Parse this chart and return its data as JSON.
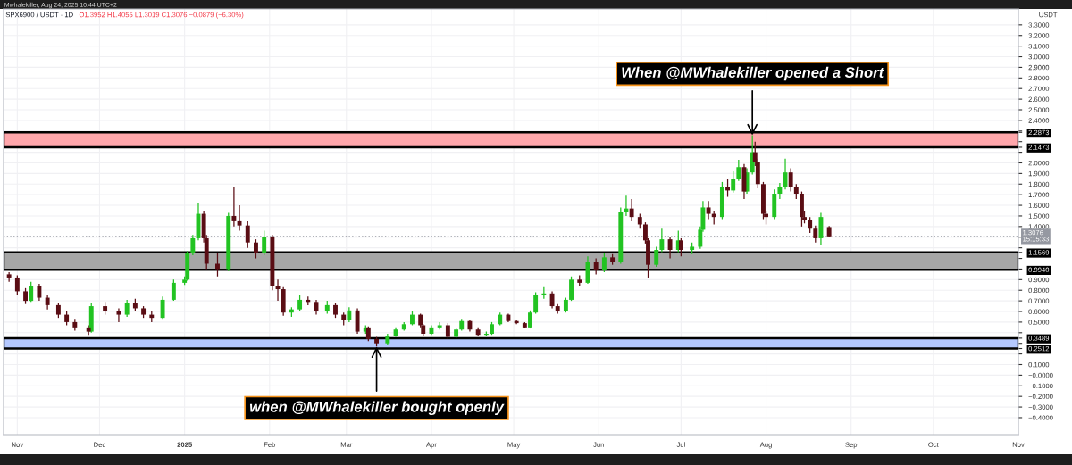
{
  "chart_data": {
    "type": "candlestick",
    "title": "SPX6900 / USDT · 1D",
    "subtitle": "O1.3952 H1.4055 L1.3019 C1.3076 −0.0879 (−6.30%)",
    "ylabel": "USDT",
    "annotations": [
      "Mwhalekiller, Aug 24, 2025 10:44 UTC+2",
      {
        "text": "When @MWhalekiller opened a Short",
        "x": "2025-07-27",
        "y": 2.26
      },
      {
        "text": "when @MWhalekiller bought openly",
        "x": "2025-03-12",
        "y": 0.27
      }
    ],
    "series": [
      {
        "color": "#22c322",
        "x": [
          "2024-11-06",
          "2024-11-28",
          "2024-12-11",
          "2024-12-24",
          "2024-12-28",
          "2025-01-01",
          "2025-01-02",
          "2025-01-04",
          "2025-01-06",
          "2025-01-17",
          "2025-01-30",
          "2025-02-09",
          "2025-02-12",
          "2025-02-22",
          "2025-03-02",
          "2025-03-08",
          "2025-03-16",
          "2025-03-19",
          "2025-03-22",
          "2025-03-25",
          "2025-04-01",
          "2025-04-04",
          "2025-04-10",
          "2025-04-12",
          "2025-04-21",
          "2025-04-23",
          "2025-04-26",
          "2025-05-07",
          "2025-05-09",
          "2025-05-12",
          "2025-05-20",
          "2025-05-22",
          "2025-05-28",
          "2025-06-03",
          "2025-06-09",
          "2025-06-11",
          "2025-06-22",
          "2025-06-24",
          "2025-06-30",
          "2025-07-05",
          "2025-07-08",
          "2025-07-09",
          "2025-07-16",
          "2025-07-20",
          "2025-07-22",
          "2025-07-25",
          "2025-07-27",
          "2025-08-04",
          "2025-08-06",
          "2025-08-08",
          "2025-08-21"
        ],
        "ohlc": [
          [
            0.7,
            0.88,
            0.69,
            0.84
          ],
          [
            0.41,
            0.68,
            0.4,
            0.65
          ],
          [
            0.57,
            0.71,
            0.55,
            0.68
          ],
          [
            0.54,
            0.74,
            0.53,
            0.71
          ],
          [
            0.71,
            0.9,
            0.7,
            0.87
          ],
          [
            0.87,
            0.93,
            0.85,
            0.9
          ],
          [
            0.9,
            1.17,
            0.89,
            1.15
          ],
          [
            1.15,
            1.32,
            1.13,
            1.29
          ],
          [
            1.29,
            1.62,
            1.27,
            1.52
          ],
          [
            1.0,
            1.53,
            0.98,
            1.5
          ],
          [
            1.15,
            1.36,
            1.13,
            1.3
          ],
          [
            0.59,
            0.64,
            0.55,
            0.62
          ],
          [
            0.62,
            0.76,
            0.6,
            0.71
          ],
          [
            0.6,
            0.7,
            0.58,
            0.66
          ],
          [
            0.52,
            0.64,
            0.5,
            0.61
          ],
          [
            0.41,
            0.47,
            0.39,
            0.45
          ],
          [
            0.3,
            0.39,
            0.29,
            0.37
          ],
          [
            0.37,
            0.45,
            0.36,
            0.43
          ],
          [
            0.43,
            0.5,
            0.42,
            0.48
          ],
          [
            0.48,
            0.6,
            0.47,
            0.57
          ],
          [
            0.39,
            0.47,
            0.38,
            0.45
          ],
          [
            0.45,
            0.5,
            0.43,
            0.47
          ],
          [
            0.36,
            0.45,
            0.35,
            0.43
          ],
          [
            0.43,
            0.53,
            0.42,
            0.51
          ],
          [
            0.38,
            0.41,
            0.37,
            0.39
          ],
          [
            0.39,
            0.5,
            0.38,
            0.48
          ],
          [
            0.48,
            0.59,
            0.47,
            0.57
          ],
          [
            0.45,
            0.61,
            0.44,
            0.59
          ],
          [
            0.59,
            0.78,
            0.58,
            0.76
          ],
          [
            0.76,
            0.83,
            0.72,
            0.77
          ],
          [
            0.6,
            0.73,
            0.59,
            0.71
          ],
          [
            0.71,
            0.93,
            0.7,
            0.9
          ],
          [
            0.87,
            1.12,
            0.86,
            1.07
          ],
          [
            0.99,
            1.15,
            0.97,
            1.11
          ],
          [
            1.07,
            1.58,
            1.05,
            1.54
          ],
          [
            1.54,
            1.69,
            1.5,
            1.57
          ],
          [
            1.04,
            1.21,
            1.02,
            1.18
          ],
          [
            1.18,
            1.38,
            1.16,
            1.28
          ],
          [
            1.18,
            1.36,
            1.16,
            1.27
          ],
          [
            1.18,
            1.25,
            1.14,
            1.21
          ],
          [
            1.21,
            1.4,
            1.19,
            1.37
          ],
          [
            1.37,
            1.64,
            1.35,
            1.58
          ],
          [
            1.49,
            1.82,
            1.47,
            1.77
          ],
          [
            1.74,
            1.92,
            1.72,
            1.85
          ],
          [
            1.85,
            2.03,
            1.83,
            1.96
          ],
          [
            1.73,
            1.95,
            1.71,
            1.91
          ],
          [
            1.91,
            2.26,
            1.89,
            2.1
          ],
          [
            1.49,
            1.75,
            1.47,
            1.71
          ],
          [
            1.71,
            1.81,
            1.66,
            1.77
          ],
          [
            1.77,
            2.04,
            1.75,
            1.91
          ],
          [
            1.29,
            1.53,
            1.23,
            1.49
          ]
        ]
      },
      {
        "color": "#5a0d14",
        "x": [
          "2024-10-29",
          "2024-11-01",
          "2024-11-04",
          "2024-11-09",
          "2024-11-12",
          "2024-11-16",
          "2024-11-19",
          "2024-11-22",
          "2024-11-27",
          "2024-12-03",
          "2024-12-08",
          "2024-12-14",
          "2024-12-17",
          "2024-12-20",
          "2025-01-08",
          "2025-01-09",
          "2025-01-13",
          "2025-01-19",
          "2025-01-21",
          "2025-01-24",
          "2025-01-27",
          "2025-02-02",
          "2025-02-04",
          "2025-02-06",
          "2025-02-15",
          "2025-02-18",
          "2025-02-25",
          "2025-02-28",
          "2025-03-05",
          "2025-03-09",
          "2025-03-12",
          "2025-03-28",
          "2025-03-29",
          "2025-04-07",
          "2025-04-15",
          "2025-04-18",
          "2025-04-29",
          "2025-05-02",
          "2025-05-05",
          "2025-05-15",
          "2025-05-17",
          "2025-05-25",
          "2025-05-31",
          "2025-06-06",
          "2025-06-13",
          "2025-06-16",
          "2025-06-18",
          "2025-06-19",
          "2025-06-27",
          "2025-07-01",
          "2025-07-11",
          "2025-07-13",
          "2025-07-18",
          "2025-07-24",
          "2025-07-28",
          "2025-07-29",
          "2025-07-31",
          "2025-08-01",
          "2025-08-10",
          "2025-08-12",
          "2025-08-14",
          "2025-08-15",
          "2025-08-17",
          "2025-08-19",
          "2025-08-24"
        ],
        "ohlc": [
          [
            0.95,
            0.97,
            0.88,
            0.92
          ],
          [
            0.92,
            0.94,
            0.76,
            0.79
          ],
          [
            0.79,
            0.82,
            0.67,
            0.7
          ],
          [
            0.84,
            0.86,
            0.7,
            0.73
          ],
          [
            0.73,
            0.76,
            0.62,
            0.66
          ],
          [
            0.66,
            0.68,
            0.54,
            0.57
          ],
          [
            0.57,
            0.6,
            0.47,
            0.5
          ],
          [
            0.5,
            0.53,
            0.42,
            0.45
          ],
          [
            0.45,
            0.47,
            0.38,
            0.41
          ],
          [
            0.65,
            0.69,
            0.57,
            0.6
          ],
          [
            0.6,
            0.63,
            0.5,
            0.57
          ],
          [
            0.68,
            0.72,
            0.6,
            0.63
          ],
          [
            0.63,
            0.65,
            0.54,
            0.57
          ],
          [
            0.57,
            0.6,
            0.5,
            0.54
          ],
          [
            1.52,
            1.55,
            1.25,
            1.29
          ],
          [
            1.29,
            1.32,
            1.0,
            1.05
          ],
          [
            1.05,
            1.15,
            0.93,
            1.0
          ],
          [
            1.5,
            1.77,
            1.4,
            1.45
          ],
          [
            1.45,
            1.6,
            1.36,
            1.41
          ],
          [
            1.41,
            1.45,
            1.2,
            1.25
          ],
          [
            1.25,
            1.28,
            1.1,
            1.15
          ],
          [
            1.3,
            1.32,
            0.8,
            0.84
          ],
          [
            0.84,
            0.9,
            0.7,
            0.81
          ],
          [
            0.81,
            0.83,
            0.56,
            0.59
          ],
          [
            0.71,
            0.74,
            0.66,
            0.69
          ],
          [
            0.69,
            0.71,
            0.57,
            0.6
          ],
          [
            0.66,
            0.68,
            0.54,
            0.57
          ],
          [
            0.57,
            0.59,
            0.47,
            0.52
          ],
          [
            0.61,
            0.63,
            0.39,
            0.41
          ],
          [
            0.45,
            0.46,
            0.32,
            0.34
          ],
          [
            0.34,
            0.36,
            0.27,
            0.3
          ],
          [
            0.57,
            0.58,
            0.45,
            0.47
          ],
          [
            0.47,
            0.48,
            0.37,
            0.39
          ],
          [
            0.47,
            0.49,
            0.34,
            0.36
          ],
          [
            0.51,
            0.52,
            0.41,
            0.43
          ],
          [
            0.43,
            0.45,
            0.37,
            0.38
          ],
          [
            0.57,
            0.58,
            0.5,
            0.51
          ],
          [
            0.51,
            0.52,
            0.48,
            0.49
          ],
          [
            0.49,
            0.5,
            0.44,
            0.45
          ],
          [
            0.77,
            0.79,
            0.63,
            0.65
          ],
          [
            0.65,
            0.67,
            0.58,
            0.6
          ],
          [
            0.9,
            0.94,
            0.84,
            0.87
          ],
          [
            1.07,
            1.1,
            0.95,
            0.99
          ],
          [
            1.11,
            1.14,
            1.04,
            1.07
          ],
          [
            1.57,
            1.66,
            1.45,
            1.49
          ],
          [
            1.49,
            1.52,
            1.38,
            1.42
          ],
          [
            1.42,
            1.44,
            1.24,
            1.27
          ],
          [
            1.27,
            1.29,
            0.92,
            1.04
          ],
          [
            1.28,
            1.3,
            1.1,
            1.18
          ],
          [
            1.27,
            1.29,
            1.12,
            1.18
          ],
          [
            1.58,
            1.64,
            1.47,
            1.52
          ],
          [
            1.52,
            1.55,
            1.42,
            1.49
          ],
          [
            1.77,
            1.85,
            1.68,
            1.74
          ],
          [
            1.96,
            1.99,
            1.66,
            1.73
          ],
          [
            2.1,
            2.2,
            1.97,
            2.01
          ],
          [
            2.01,
            2.04,
            1.76,
            1.8
          ],
          [
            1.8,
            1.82,
            1.47,
            1.52
          ],
          [
            1.52,
            1.55,
            1.42,
            1.49
          ],
          [
            1.91,
            1.95,
            1.73,
            1.77
          ],
          [
            1.77,
            1.8,
            1.66,
            1.71
          ],
          [
            1.71,
            1.73,
            1.4,
            1.49
          ],
          [
            1.49,
            1.55,
            1.43,
            1.46
          ],
          [
            1.46,
            1.49,
            1.34,
            1.38
          ],
          [
            1.38,
            1.41,
            1.25,
            1.29
          ],
          [
            1.3952,
            1.4055,
            1.3019,
            1.3076
          ]
        ]
      }
    ],
    "bands": [
      {
        "axis": "y",
        "from": 2.1473,
        "to": 2.2873,
        "color": "#ffa6ab"
      },
      {
        "axis": "y",
        "from": 0.994,
        "to": 1.1569,
        "color": "#a6a6a6"
      },
      {
        "axis": "y",
        "from": 0.2512,
        "to": 0.3489,
        "color": "#b4c8ff"
      }
    ],
    "ref_lines": [
      {
        "axis": "y",
        "value": 1.3076,
        "label": "1.3076\n15:15:33",
        "color": "#9598a1",
        "line_style": "dotted"
      }
    ],
    "xlim": [
      "2024-10-27",
      "2025-11-01"
    ],
    "xticks": [
      {
        "value": "2024-11-01",
        "label": "Nov"
      },
      {
        "value": "2024-12-01",
        "label": "Dec"
      },
      {
        "value": "2025-01-01",
        "label": "2025"
      },
      {
        "value": "2025-02-01",
        "label": "Feb"
      },
      {
        "value": "2025-03-01",
        "label": "Mar"
      },
      {
        "value": "2025-04-01",
        "label": "Apr"
      },
      {
        "value": "2025-05-01",
        "label": "May"
      },
      {
        "value": "2025-06-01",
        "label": "Jun"
      },
      {
        "value": "2025-07-01",
        "label": "Jul"
      },
      {
        "value": "2025-08-01",
        "label": "Aug"
      },
      {
        "value": "2025-09-01",
        "label": "Sep"
      },
      {
        "value": "2025-10-01",
        "label": "Oct"
      },
      {
        "value": "2025-11-01",
        "label": "Nov"
      }
    ],
    "ylim": [
      -0.56,
      3.45
    ],
    "yticks": [
      {
        "value": 3.3,
        "label": "3.3000"
      },
      {
        "value": 3.2,
        "label": "3.2000"
      },
      {
        "value": 3.1,
        "label": "3.1000"
      },
      {
        "value": 3.0,
        "label": "3.0000"
      },
      {
        "value": 2.9,
        "label": "2.9000"
      },
      {
        "value": 2.8,
        "label": "2.8000"
      },
      {
        "value": 2.7,
        "label": "2.7000"
      },
      {
        "value": 2.6,
        "label": "2.6000"
      },
      {
        "value": 2.5,
        "label": "2.5000"
      },
      {
        "value": 2.4,
        "label": "2.4000"
      },
      {
        "value": 2.3,
        "label": null
      },
      {
        "value": 2.2873,
        "label": "2.2873"
      },
      {
        "value": 2.2,
        "label": null
      },
      {
        "value": 2.1473,
        "label": "2.1473"
      },
      {
        "value": 2.1,
        "label": null
      },
      {
        "value": 2.0,
        "label": "2.0000"
      },
      {
        "value": 1.9,
        "label": "1.9000"
      },
      {
        "value": 1.8,
        "label": "1.8000"
      },
      {
        "value": 1.7,
        "label": "1.7000"
      },
      {
        "value": 1.6,
        "label": "1.6000"
      },
      {
        "value": 1.5,
        "label": "1.5000"
      },
      {
        "value": 1.4,
        "label": "1.4000"
      },
      {
        "value": 1.3,
        "label": null
      },
      {
        "value": 1.2,
        "label": null
      },
      {
        "value": 1.1569,
        "label": "1.1569"
      },
      {
        "value": 1.1,
        "label": null
      },
      {
        "value": 1.0,
        "label": null
      },
      {
        "value": 0.994,
        "label": "0.9940"
      },
      {
        "value": 0.9,
        "label": "0.9000"
      },
      {
        "value": 0.8,
        "label": "0.8000"
      },
      {
        "value": 0.7,
        "label": "0.7000"
      },
      {
        "value": 0.6,
        "label": "0.6000"
      },
      {
        "value": 0.5,
        "label": "0.5000"
      },
      {
        "value": 0.4,
        "label": null
      },
      {
        "value": 0.3489,
        "label": "0.3489"
      },
      {
        "value": 0.3,
        "label": null
      },
      {
        "value": 0.2512,
        "label": "0.2512"
      },
      {
        "value": 0.2,
        "label": null
      },
      {
        "value": 0.1,
        "label": "0.1000"
      },
      {
        "value": 0,
        "label": "−0.0000"
      },
      {
        "value": -0.1,
        "label": "−0.1000"
      },
      {
        "value": -0.2,
        "label": "−0.2000"
      },
      {
        "value": -0.3,
        "label": "−0.3000"
      },
      {
        "value": -0.4,
        "label": "−0.4000"
      }
    ],
    "grid": true
  }
}
